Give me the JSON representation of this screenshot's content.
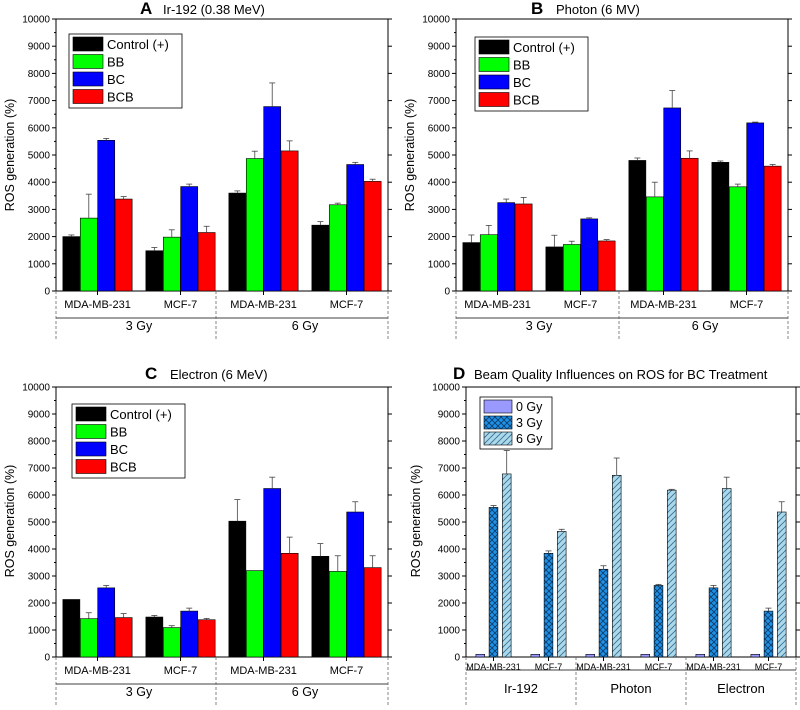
{
  "panels": [
    {
      "letter": "A",
      "title": "Ir-192 (0.38 MeV)",
      "ylabel": "ROS generation (%)",
      "categories": [
        "MDA-MB-231",
        "MCF-7",
        "MDA-MB-231",
        "MCF-7"
      ],
      "groups": [
        "3 Gy",
        "6 Gy"
      ],
      "legend": [
        "Control (+)",
        "BB",
        "BC",
        "BCB"
      ]
    },
    {
      "letter": "B",
      "title": "Photon (6 MV)",
      "ylabel": "ROS generation (%)",
      "categories": [
        "MDA-MB-231",
        "MCF-7",
        "MDA-MB-231",
        "MCF-7"
      ],
      "groups": [
        "3 Gy",
        "6 Gy"
      ],
      "legend": [
        "Control (+)",
        "BB",
        "BC",
        "BCB"
      ]
    },
    {
      "letter": "C",
      "title": "Electron (6 MeV)",
      "ylabel": "ROS generation (%)",
      "categories": [
        "MDA-MB-231",
        "MCF-7",
        "MDA-MB-231",
        "MCF-7"
      ],
      "groups": [
        "3 Gy",
        "6 Gy"
      ],
      "legend": [
        "Control (+)",
        "BB",
        "BC",
        "BCB"
      ]
    },
    {
      "letter": "D",
      "title": "Beam Quality Influences on ROS for BC Treatment",
      "ylabel": "ROS generation (%)",
      "categories": [
        "MDA-MB-231",
        "MCF-7",
        "MDA-MB-231",
        "MCF-7",
        "MDA-MB-231",
        "MCF-7"
      ],
      "groups": [
        "Ir-192",
        "Photon",
        "Electron"
      ],
      "legend": [
        "0 Gy",
        "3 Gy",
        "6 Gy"
      ]
    }
  ],
  "yticks": [
    "0",
    "1000",
    "2000",
    "3000",
    "4000",
    "5000",
    "6000",
    "7000",
    "8000",
    "9000",
    "10000"
  ],
  "colors": {
    "control": "#000000",
    "bb": "#00ff00",
    "bc": "#0000ff",
    "bcb": "#ff0000",
    "d_0gy": "#9999ff",
    "d_3gy": "#1e90e6",
    "d_6gy": "#add8ea"
  },
  "chart_data": [
    {
      "type": "bar",
      "title": "Ir-192 (0.38 MeV)",
      "ylabel": "ROS generation (%)",
      "ylim": [
        0,
        10000
      ],
      "categories": [
        "3 Gy MDA-MB-231",
        "3 Gy MCF-7",
        "6 Gy MDA-MB-231",
        "6 Gy MCF-7"
      ],
      "series": [
        {
          "name": "Control (+)",
          "values": [
            2000,
            1480,
            3600,
            2420
          ],
          "errors": [
            60,
            120,
            80,
            130
          ]
        },
        {
          "name": "BB",
          "values": [
            2680,
            1980,
            4870,
            3170
          ],
          "errors": [
            880,
            270,
            270,
            60
          ]
        },
        {
          "name": "BC",
          "values": [
            5540,
            3840,
            6780,
            4650
          ],
          "errors": [
            70,
            90,
            870,
            80
          ]
        },
        {
          "name": "BCB",
          "values": [
            3380,
            2150,
            5150,
            4030
          ],
          "errors": [
            90,
            230,
            370,
            80
          ]
        }
      ]
    },
    {
      "type": "bar",
      "title": "Photon (6 MV)",
      "ylabel": "ROS generation (%)",
      "ylim": [
        0,
        10000
      ],
      "categories": [
        "3 Gy MDA-MB-231",
        "3 Gy MCF-7",
        "6 Gy MDA-MB-231",
        "6 Gy MCF-7"
      ],
      "series": [
        {
          "name": "Control (+)",
          "values": [
            1780,
            1620,
            4800,
            4730
          ],
          "errors": [
            280,
            430,
            90,
            50
          ]
        },
        {
          "name": "BB",
          "values": [
            2070,
            1710,
            3460,
            3830
          ],
          "errors": [
            340,
            120,
            540,
            100
          ]
        },
        {
          "name": "BC",
          "values": [
            3250,
            2650,
            6730,
            6180
          ],
          "errors": [
            130,
            40,
            640,
            30
          ]
        },
        {
          "name": "BCB",
          "values": [
            3200,
            1840,
            4880,
            4590
          ],
          "errors": [
            240,
            50,
            270,
            60
          ]
        }
      ]
    },
    {
      "type": "bar",
      "title": "Electron (6 MeV)",
      "ylabel": "ROS generation (%)",
      "ylim": [
        0,
        10000
      ],
      "categories": [
        "3 Gy MDA-MB-231",
        "3 Gy MCF-7",
        "6 Gy MDA-MB-231",
        "6 Gy MCF-7"
      ],
      "series": [
        {
          "name": "Control (+)",
          "values": [
            2130,
            1480,
            5030,
            3730
          ],
          "errors": [
            0,
            60,
            800,
            470
          ]
        },
        {
          "name": "BB",
          "values": [
            1420,
            1090,
            3200,
            3170
          ],
          "errors": [
            220,
            70,
            0,
            580
          ]
        },
        {
          "name": "BC",
          "values": [
            2560,
            1700,
            6240,
            5370
          ],
          "errors": [
            90,
            110,
            420,
            380
          ]
        },
        {
          "name": "BCB",
          "values": [
            1460,
            1380,
            3840,
            3310
          ],
          "errors": [
            150,
            50,
            600,
            440
          ]
        }
      ]
    },
    {
      "type": "bar",
      "title": "Beam Quality Influences on ROS for BC Treatment",
      "ylabel": "ROS generation (%)",
      "ylim": [
        0,
        10000
      ],
      "categories": [
        "Ir-192 MDA-MB-231",
        "Ir-192 MCF-7",
        "Photon MDA-MB-231",
        "Photon MCF-7",
        "Electron MDA-MB-231",
        "Electron MCF-7"
      ],
      "series": [
        {
          "name": "0 Gy",
          "values": [
            100,
            100,
            100,
            100,
            100,
            100
          ],
          "errors": [
            0,
            0,
            0,
            0,
            0,
            0
          ]
        },
        {
          "name": "3 Gy",
          "values": [
            5540,
            3840,
            3250,
            2650,
            2560,
            1700
          ],
          "errors": [
            70,
            90,
            130,
            40,
            90,
            110
          ]
        },
        {
          "name": "6 Gy",
          "values": [
            6780,
            4650,
            6730,
            6180,
            6240,
            5370
          ],
          "errors": [
            870,
            80,
            640,
            30,
            420,
            380
          ]
        }
      ]
    }
  ]
}
